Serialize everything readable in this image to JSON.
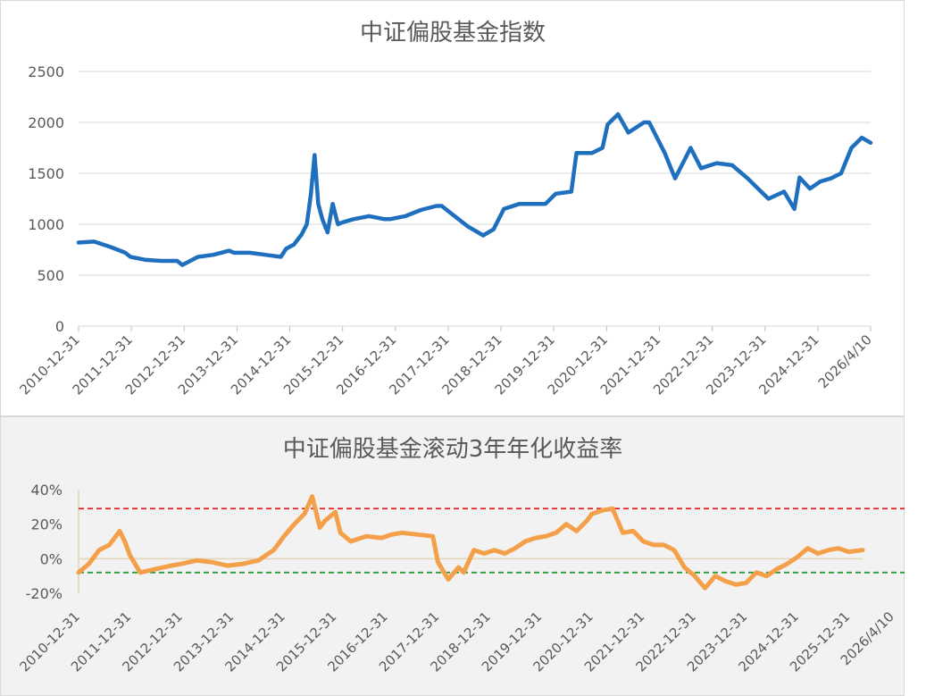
{
  "chart_data": [
    {
      "type": "line",
      "title": "中证偏股基金指数",
      "xlabel": "",
      "ylabel": "",
      "ylim": [
        0,
        2500
      ],
      "yticks": [
        0,
        500,
        1000,
        1500,
        2000,
        2500
      ],
      "grid": true,
      "legend": "none",
      "xtick_labels": [
        "2010-12-31",
        "2011-12-31",
        "2012-12-31",
        "2013-12-31",
        "2014-12-31",
        "2015-12-31",
        "2016-12-31",
        "2017-12-31",
        "2018-12-31",
        "2019-12-31",
        "2020-12-31",
        "2021-12-31",
        "2022-12-31",
        "2023-12-31",
        "2024-12-31",
        "2026/4/10"
      ],
      "series_color": "#1f6fbf",
      "x_years": [
        2011.0,
        2011.3,
        2011.6,
        2011.9,
        2012.0,
        2012.3,
        2012.6,
        2012.9,
        2013.0,
        2013.3,
        2013.6,
        2013.9,
        2014.0,
        2014.3,
        2014.6,
        2014.9,
        2015.0,
        2015.15,
        2015.3,
        2015.4,
        2015.48,
        2015.55,
        2015.62,
        2015.7,
        2015.8,
        2015.9,
        2016.0,
        2016.1,
        2016.3,
        2016.6,
        2016.9,
        2017.0,
        2017.3,
        2017.6,
        2017.9,
        2018.0,
        2018.2,
        2018.5,
        2018.8,
        2019.0,
        2019.2,
        2019.5,
        2019.8,
        2020.0,
        2020.2,
        2020.5,
        2020.6,
        2020.9,
        2021.1,
        2021.2,
        2021.4,
        2021.6,
        2021.9,
        2022.0,
        2022.3,
        2022.5,
        2022.8,
        2023.0,
        2023.3,
        2023.6,
        2023.9,
        2024.1,
        2024.3,
        2024.6,
        2024.8,
        2024.9,
        2025.1,
        2025.3,
        2025.5,
        2025.7,
        2025.9,
        2026.1,
        2026.27
      ],
      "values": [
        820,
        830,
        780,
        720,
        680,
        650,
        640,
        640,
        600,
        680,
        700,
        740,
        720,
        720,
        700,
        680,
        760,
        800,
        900,
        1000,
        1300,
        1680,
        1200,
        1050,
        920,
        1200,
        1000,
        1020,
        1050,
        1080,
        1050,
        1050,
        1080,
        1140,
        1180,
        1180,
        1100,
        980,
        890,
        950,
        1150,
        1200,
        1200,
        1200,
        1300,
        1320,
        1700,
        1700,
        1750,
        1980,
        2080,
        1900,
        2000,
        2000,
        1700,
        1450,
        1750,
        1550,
        1600,
        1580,
        1450,
        1350,
        1250,
        1320,
        1150,
        1460,
        1350,
        1420,
        1450,
        1500,
        1750,
        1850,
        1800
      ]
    },
    {
      "type": "line",
      "title": "中证偏股基金滚动3年年化收益率",
      "xlabel": "",
      "ylabel": "",
      "ylim": [
        -0.2,
        0.4
      ],
      "yticks": [
        -0.2,
        0,
        0.2,
        0.4
      ],
      "ytick_labels": [
        "-20%",
        "0%",
        "20%",
        "40%"
      ],
      "grid": false,
      "legend": "none",
      "xtick_labels": [
        "2010-12-31",
        "2011-12-31",
        "2012-12-31",
        "2013-12-31",
        "2014-12-31",
        "2015-12-31",
        "2016-12-31",
        "2017-12-31",
        "2018-12-31",
        "2019-12-31",
        "2020-12-31",
        "2021-12-31",
        "2022-12-31",
        "2023-12-31",
        "2024-12-31",
        "2025-12-31",
        "2026/4/10"
      ],
      "series_color": "#f4a04a",
      "reference_lines": [
        {
          "value": 0.29,
          "color": "#e02020"
        },
        {
          "value": -0.08,
          "color": "#2a9a3a"
        }
      ],
      "x_years": [
        2011.0,
        2011.2,
        2011.4,
        2011.6,
        2011.8,
        2011.9,
        2012.0,
        2012.2,
        2012.5,
        2012.8,
        2013.0,
        2013.3,
        2013.6,
        2013.9,
        2014.2,
        2014.5,
        2014.8,
        2015.0,
        2015.2,
        2015.4,
        2015.55,
        2015.7,
        2015.8,
        2016.0,
        2016.1,
        2016.3,
        2016.6,
        2016.9,
        2017.1,
        2017.3,
        2017.6,
        2017.9,
        2018.0,
        2018.2,
        2018.4,
        2018.5,
        2018.7,
        2018.9,
        2019.1,
        2019.3,
        2019.5,
        2019.7,
        2019.9,
        2020.1,
        2020.3,
        2020.5,
        2020.7,
        2020.9,
        2021.0,
        2021.2,
        2021.4,
        2021.6,
        2021.8,
        2022.0,
        2022.2,
        2022.4,
        2022.6,
        2022.8,
        2023.0,
        2023.2,
        2023.4,
        2023.6,
        2023.8,
        2024.0,
        2024.2,
        2024.4,
        2024.6,
        2024.8,
        2025.0,
        2025.2,
        2025.4,
        2025.6,
        2025.8,
        2026.0,
        2026.27
      ],
      "values": [
        -0.08,
        -0.03,
        0.05,
        0.08,
        0.16,
        0.1,
        0.02,
        -0.08,
        -0.06,
        -0.04,
        -0.03,
        -0.01,
        -0.02,
        -0.04,
        -0.03,
        -0.01,
        0.05,
        0.13,
        0.2,
        0.26,
        0.36,
        0.18,
        0.22,
        0.27,
        0.15,
        0.1,
        0.13,
        0.12,
        0.14,
        0.15,
        0.14,
        0.13,
        -0.02,
        -0.12,
        -0.05,
        -0.08,
        0.05,
        0.03,
        0.05,
        0.03,
        0.06,
        0.1,
        0.12,
        0.13,
        0.15,
        0.2,
        0.16,
        0.22,
        0.26,
        0.28,
        0.29,
        0.15,
        0.16,
        0.1,
        0.08,
        0.08,
        0.05,
        -0.05,
        -0.1,
        -0.17,
        -0.1,
        -0.13,
        -0.15,
        -0.14,
        -0.08,
        -0.1,
        -0.06,
        -0.03,
        0.01,
        0.06,
        0.03,
        0.05,
        0.06,
        0.04,
        0.05
      ]
    }
  ]
}
